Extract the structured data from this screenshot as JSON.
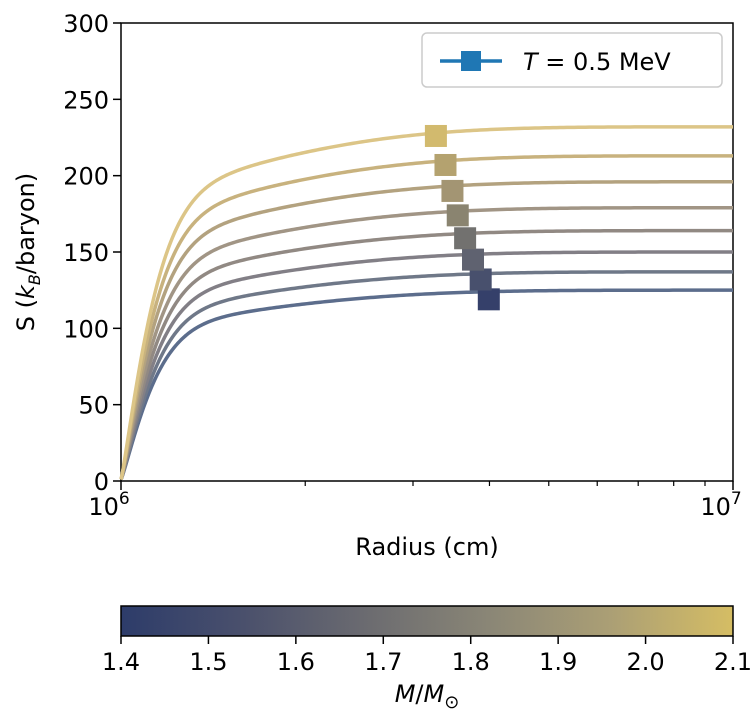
{
  "chart_data": [
    {
      "type": "line",
      "xlabel": "Radius (cm)",
      "ylabel_prefix": "S (",
      "ylabel_k": "k",
      "ylabel_sub": "B",
      "ylabel_suffix": "/baryon)",
      "x_scale": "log",
      "xlim": [
        1000000,
        10000000
      ],
      "ylim": [
        0,
        300
      ],
      "y_ticks": [
        "0",
        "50",
        "100",
        "150",
        "200",
        "250",
        "300"
      ],
      "x_tick_major": [
        {
          "base": "10",
          "exp": "6"
        },
        {
          "base": "10",
          "exp": "7"
        }
      ],
      "grid": false,
      "legend": {
        "position": "top-right",
        "label_var": "T",
        "label_rest": " = 0.5 MeV",
        "color": "#1f77b4"
      },
      "series": [
        {
          "mass": 1.4,
          "color": "#5c6d8c",
          "plateau": 125,
          "marker": {
            "r": 3990000,
            "s": 119
          }
        },
        {
          "mass": 1.5,
          "color": "#6f7888",
          "plateau": 137,
          "marker": {
            "r": 3870000,
            "s": 132
          }
        },
        {
          "mass": 1.6,
          "color": "#827f86",
          "plateau": 150,
          "marker": {
            "r": 3760000,
            "s": 145
          }
        },
        {
          "mass": 1.7,
          "color": "#918983",
          "plateau": 164,
          "marker": {
            "r": 3650000,
            "s": 159
          }
        },
        {
          "mass": 1.8,
          "color": "#a19585",
          "plateau": 179,
          "marker": {
            "r": 3550000,
            "s": 174
          }
        },
        {
          "mass": 1.9,
          "color": "#b3a27f",
          "plateau": 196,
          "marker": {
            "r": 3480000,
            "s": 190
          }
        },
        {
          "mass": 2.0,
          "color": "#c8b27e",
          "plateau": 213,
          "marker": {
            "r": 3390000,
            "s": 207
          }
        },
        {
          "mass": 2.1,
          "color": "#dcc587",
          "plateau": 232,
          "marker": {
            "r": 3270000,
            "s": 226
          }
        }
      ],
      "marker_colors": [
        "#35406a",
        "#48506d",
        "#5f6270",
        "#72716f",
        "#8a8470",
        "#a39573",
        "#b4a26f",
        "#d2ba6e"
      ]
    },
    {
      "type": "colorbar",
      "label_var": "M",
      "label_sep": "/",
      "label_var2": "M",
      "label_sub": "⊙",
      "range": [
        1.4,
        2.1
      ],
      "ticks": [
        "1.4",
        "1.5",
        "1.6",
        "1.7",
        "1.8",
        "1.9",
        "2.0",
        "2.1"
      ],
      "colormap": [
        "#2d3c6a",
        "#4a506c",
        "#6b6b70",
        "#8a8676",
        "#ab9f75",
        "#d5bd64"
      ]
    }
  ]
}
